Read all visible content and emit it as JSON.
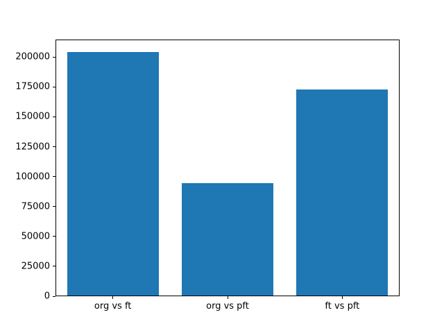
{
  "chart_data": {
    "type": "bar",
    "categories": [
      "org vs ft",
      "org vs pft",
      "ft vs pft"
    ],
    "values": [
      204500,
      94700,
      173000
    ],
    "title": "",
    "xlabel": "",
    "ylabel": "",
    "ylim": [
      0,
      214700
    ],
    "yticks": [
      0,
      25000,
      50000,
      75000,
      100000,
      125000,
      150000,
      175000,
      200000
    ],
    "bar_color": "#1f77b4",
    "bar_width_fraction": 0.8,
    "grid": false,
    "legend": false,
    "background_color": "#ffffff",
    "spine_color": "#000000",
    "text_color": "#000000"
  }
}
